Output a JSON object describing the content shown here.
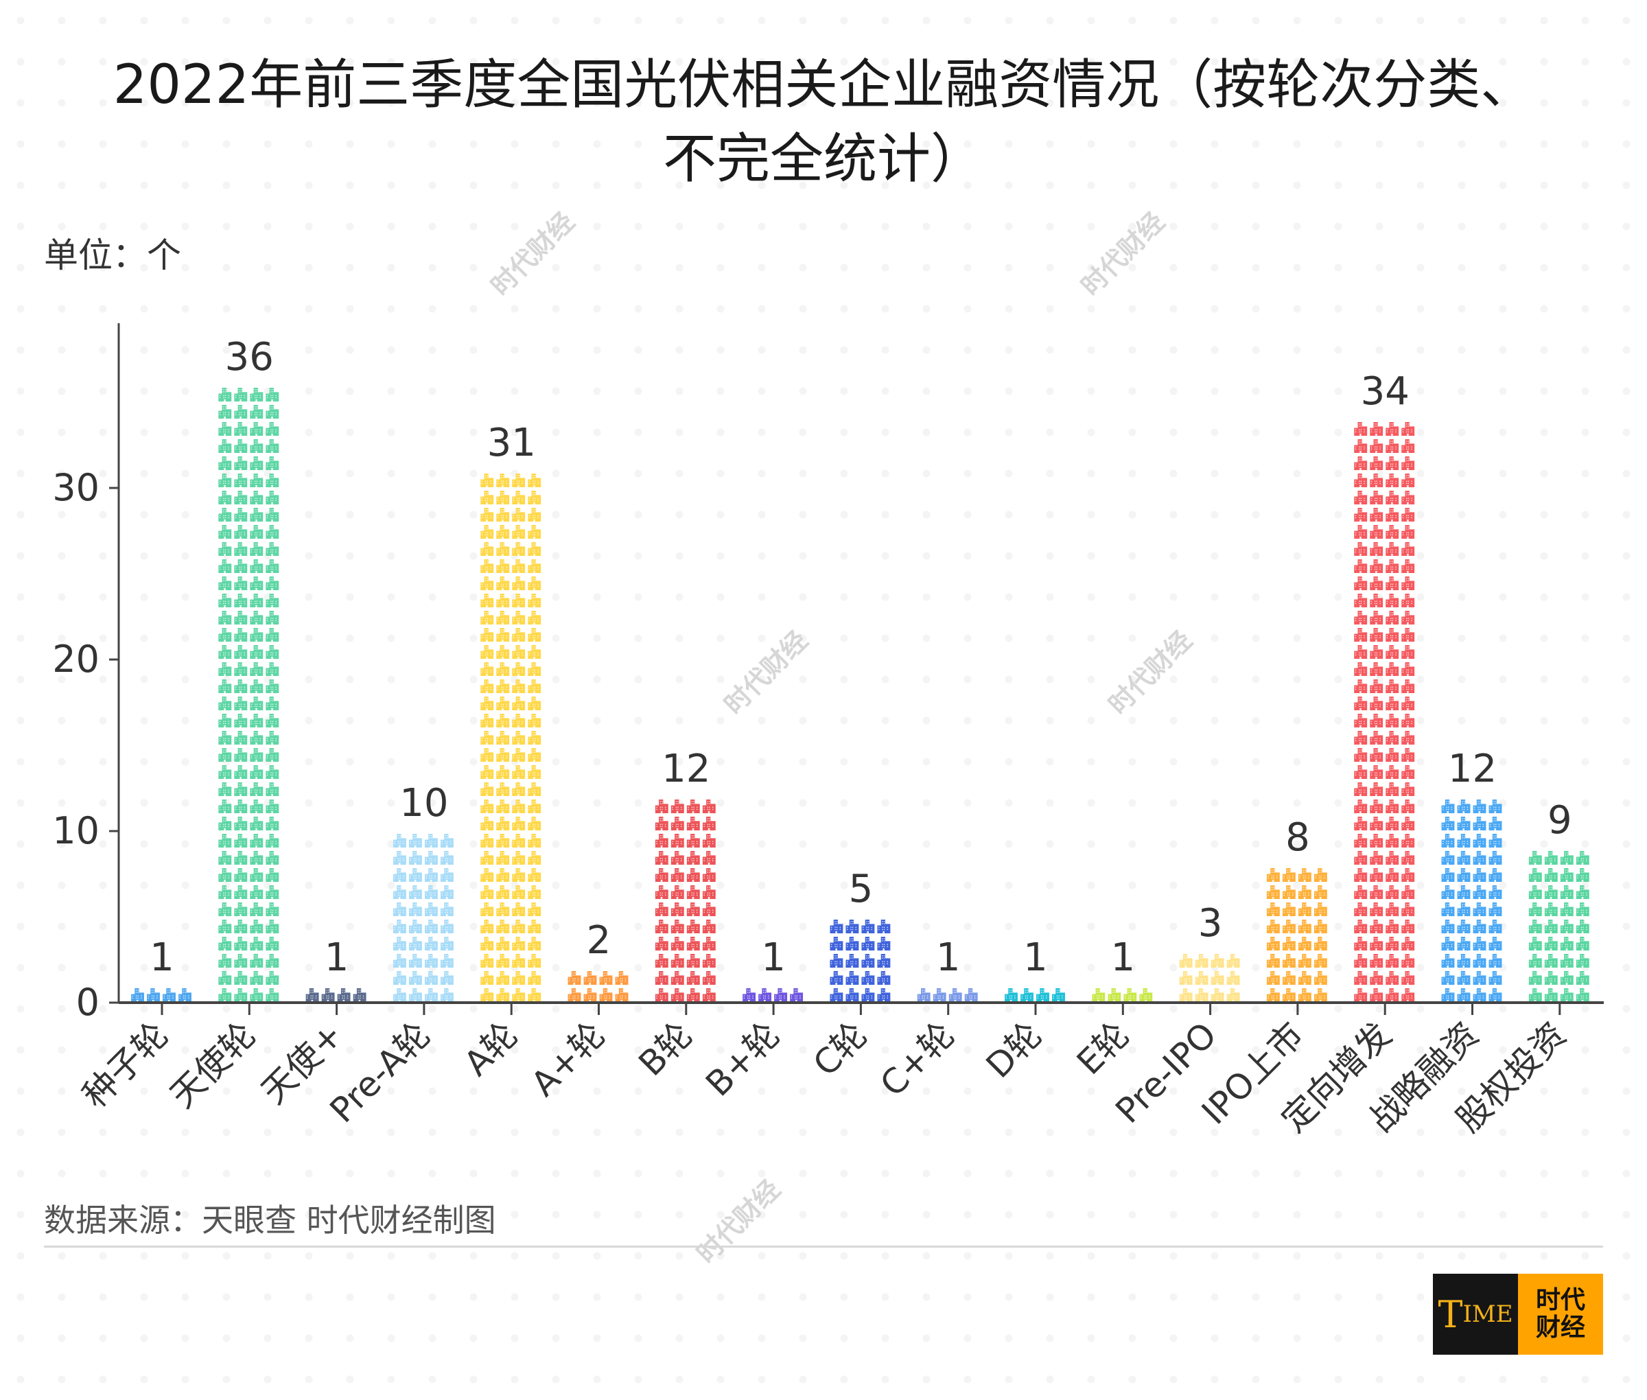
{
  "title_line1": "2022年前三季度全国光伏相关企业融资情况（按轮次分类、",
  "title_line2": "不完全统计）",
  "unit_label": "单位：个",
  "source": "数据来源：天眼查 时代财经制图",
  "watermark": "时代财经",
  "logo": {
    "left": "TIME",
    "right": "时代财经"
  },
  "chart_data": {
    "type": "bar",
    "style": "pictogram (building icons)",
    "categories": [
      "种子轮",
      "天使轮",
      "天使+",
      "Pre-A轮",
      "A轮",
      "A+轮",
      "B轮",
      "B+轮",
      "C轮",
      "C+轮",
      "D轮",
      "E轮",
      "Pre-IPO",
      "IPO上市",
      "定向增发",
      "战略融资",
      "股权投资"
    ],
    "values": [
      1,
      36,
      1,
      10,
      31,
      2,
      12,
      1,
      5,
      1,
      1,
      1,
      3,
      8,
      34,
      12,
      9
    ],
    "colors": [
      "#4da6f0",
      "#5ed6a5",
      "#5b6b8e",
      "#a8dcf8",
      "#ffd84a",
      "#ff9a40",
      "#ec5458",
      "#7055e0",
      "#3f63dc",
      "#7b9ae8",
      "#1ec0d8",
      "#c8e84a",
      "#ffe38a",
      "#ffb03a",
      "#f55a5f",
      "#4aa8f5",
      "#5ad6a0"
    ],
    "yticks": [
      0,
      10,
      20,
      30
    ],
    "ylim": [
      0,
      39
    ],
    "grid": false,
    "legend": "none"
  }
}
